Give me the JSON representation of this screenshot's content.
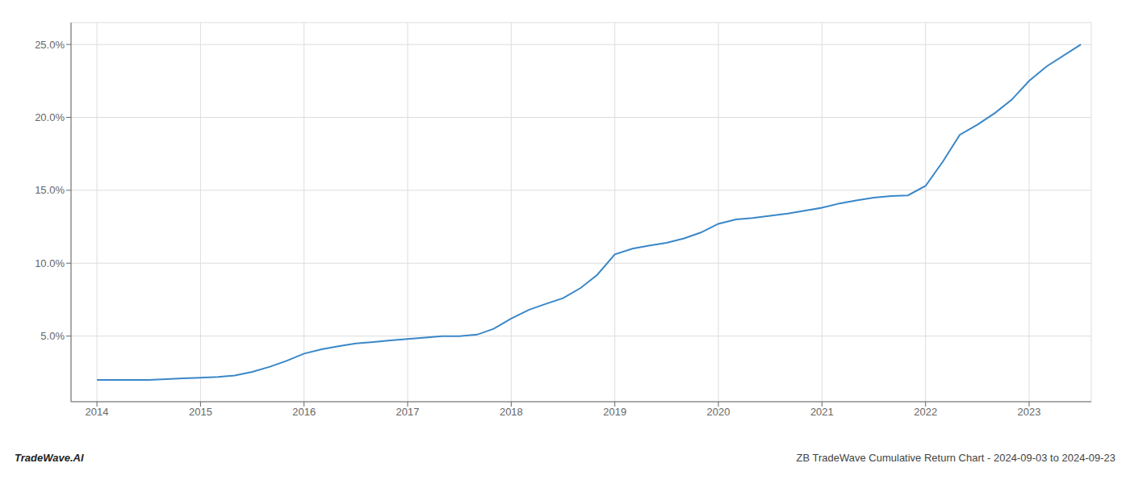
{
  "chart_data": {
    "type": "line",
    "x": [
      2014.0,
      2014.17,
      2014.33,
      2014.5,
      2014.67,
      2014.83,
      2015.0,
      2015.17,
      2015.33,
      2015.5,
      2015.67,
      2015.83,
      2016.0,
      2016.17,
      2016.33,
      2016.5,
      2016.67,
      2016.83,
      2017.0,
      2017.17,
      2017.33,
      2017.5,
      2017.67,
      2017.83,
      2018.0,
      2018.17,
      2018.33,
      2018.5,
      2018.67,
      2018.83,
      2019.0,
      2019.17,
      2019.33,
      2019.5,
      2019.67,
      2019.83,
      2020.0,
      2020.17,
      2020.33,
      2020.5,
      2020.67,
      2020.83,
      2021.0,
      2021.17,
      2021.33,
      2021.5,
      2021.67,
      2021.83,
      2022.0,
      2022.17,
      2022.33,
      2022.5,
      2022.67,
      2022.83,
      2023.0,
      2023.17,
      2023.5
    ],
    "values": [
      2.0,
      2.0,
      2.0,
      2.0,
      2.05,
      2.1,
      2.15,
      2.2,
      2.3,
      2.55,
      2.9,
      3.3,
      3.8,
      4.1,
      4.3,
      4.5,
      4.6,
      4.7,
      4.8,
      4.9,
      5.0,
      5.0,
      5.1,
      5.5,
      6.2,
      6.8,
      7.2,
      7.6,
      8.3,
      9.2,
      10.6,
      11.0,
      11.2,
      11.4,
      11.7,
      12.1,
      12.7,
      13.0,
      13.1,
      13.25,
      13.4,
      13.6,
      13.8,
      14.1,
      14.3,
      14.5,
      14.6,
      14.65,
      15.3,
      17.0,
      18.8,
      19.5,
      20.3,
      21.2,
      22.5,
      23.5,
      25.0
    ],
    "color": "#3a87c8",
    "xlim": [
      2013.75,
      2023.6
    ],
    "xticks": [
      2014,
      2015,
      2016,
      2017,
      2018,
      2019,
      2020,
      2021,
      2022,
      2023
    ],
    "ylim": [
      0.5,
      26.5
    ],
    "yticks": [
      {
        "value": 5.0,
        "label": "5.0%"
      },
      {
        "value": 10.0,
        "label": "10.0%"
      },
      {
        "value": 15.0,
        "label": "15.0%"
      },
      {
        "value": 20.0,
        "label": "20.0%"
      },
      {
        "value": 25.0,
        "label": "25.0%"
      }
    ],
    "grid": true,
    "annotations": [
      "TradeWave.AI",
      "ZB TradeWave Cumulative Return Chart - 2024-09-03 to 2024-09-23"
    ]
  }
}
